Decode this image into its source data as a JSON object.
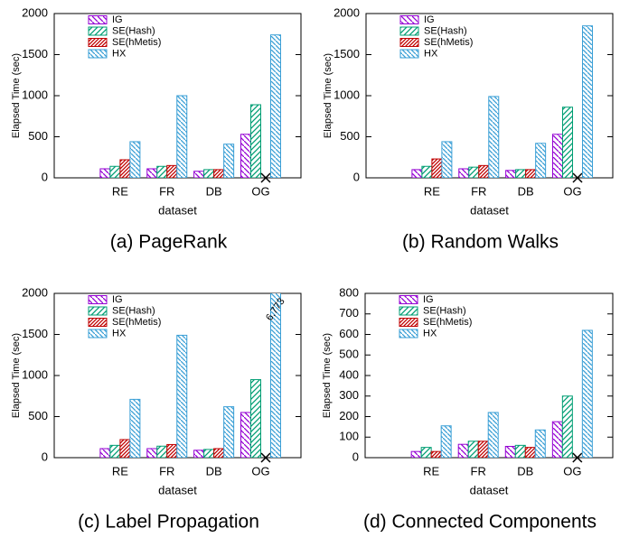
{
  "chart_data": [
    {
      "type": "bar",
      "title": "(a) PageRank",
      "xlabel": "dataset",
      "ylabel": "Elapsed Time (sec)",
      "categories": [
        "RE",
        "FR",
        "DB",
        "OG"
      ],
      "ylim": [
        0,
        2000
      ],
      "yticks": [
        0,
        500,
        1000,
        1500,
        2000
      ],
      "series": [
        {
          "name": "IG",
          "color": "#9400d3",
          "values": [
            110,
            110,
            80,
            530
          ]
        },
        {
          "name": "SE(Hash)",
          "color": "#009e73",
          "values": [
            140,
            140,
            100,
            890
          ]
        },
        {
          "name": "SE(hMetis)",
          "color": "#c00000",
          "values": [
            220,
            150,
            100,
            null
          ]
        },
        {
          "name": "HX",
          "color": "#3a9fd6",
          "values": [
            440,
            1000,
            410,
            1740
          ]
        }
      ]
    },
    {
      "type": "bar",
      "title": "(b) Random Walks",
      "xlabel": "dataset",
      "ylabel": "Elapsed Time (sec)",
      "categories": [
        "RE",
        "FR",
        "DB",
        "OG"
      ],
      "ylim": [
        0,
        2000
      ],
      "yticks": [
        0,
        500,
        1000,
        1500,
        2000
      ],
      "series": [
        {
          "name": "IG",
          "color": "#9400d3",
          "values": [
            100,
            110,
            90,
            530
          ]
        },
        {
          "name": "SE(Hash)",
          "color": "#009e73",
          "values": [
            140,
            130,
            100,
            860
          ]
        },
        {
          "name": "SE(hMetis)",
          "color": "#c00000",
          "values": [
            230,
            150,
            100,
            null
          ]
        },
        {
          "name": "HX",
          "color": "#3a9fd6",
          "values": [
            440,
            990,
            420,
            1850
          ]
        }
      ]
    },
    {
      "type": "bar",
      "title": "(c) Label Propagation",
      "xlabel": "dataset",
      "ylabel": "Elapsed Time (sec)",
      "categories": [
        "RE",
        "FR",
        "DB",
        "OG"
      ],
      "ylim": [
        0,
        2000
      ],
      "yticks": [
        0,
        500,
        1000,
        1500,
        2000
      ],
      "series": [
        {
          "name": "IG",
          "color": "#9400d3",
          "values": [
            110,
            110,
            90,
            550
          ]
        },
        {
          "name": "SE(Hash)",
          "color": "#009e73",
          "values": [
            150,
            140,
            100,
            950
          ]
        },
        {
          "name": "SE(hMetis)",
          "color": "#c00000",
          "values": [
            220,
            160,
            110,
            null
          ]
        },
        {
          "name": "HX",
          "color": "#3a9fd6",
          "values": [
            710,
            1490,
            620,
            6773
          ],
          "value_labels": [
            null,
            null,
            null,
            "6,773"
          ]
        }
      ]
    },
    {
      "type": "bar",
      "title": "(d) Connected Components",
      "xlabel": "dataset",
      "ylabel": "Elapsed Time (sec)",
      "categories": [
        "RE",
        "FR",
        "DB",
        "OG"
      ],
      "ylim": [
        0,
        800
      ],
      "yticks": [
        0,
        100,
        200,
        300,
        400,
        500,
        600,
        700,
        800
      ],
      "series": [
        {
          "name": "IG",
          "color": "#9400d3",
          "values": [
            30,
            65,
            55,
            175
          ]
        },
        {
          "name": "SE(Hash)",
          "color": "#009e73",
          "values": [
            50,
            80,
            60,
            300
          ]
        },
        {
          "name": "SE(hMetis)",
          "color": "#c00000",
          "values": [
            30,
            80,
            50,
            null
          ]
        },
        {
          "name": "HX",
          "color": "#3a9fd6",
          "values": [
            155,
            220,
            135,
            620
          ]
        }
      ]
    }
  ]
}
